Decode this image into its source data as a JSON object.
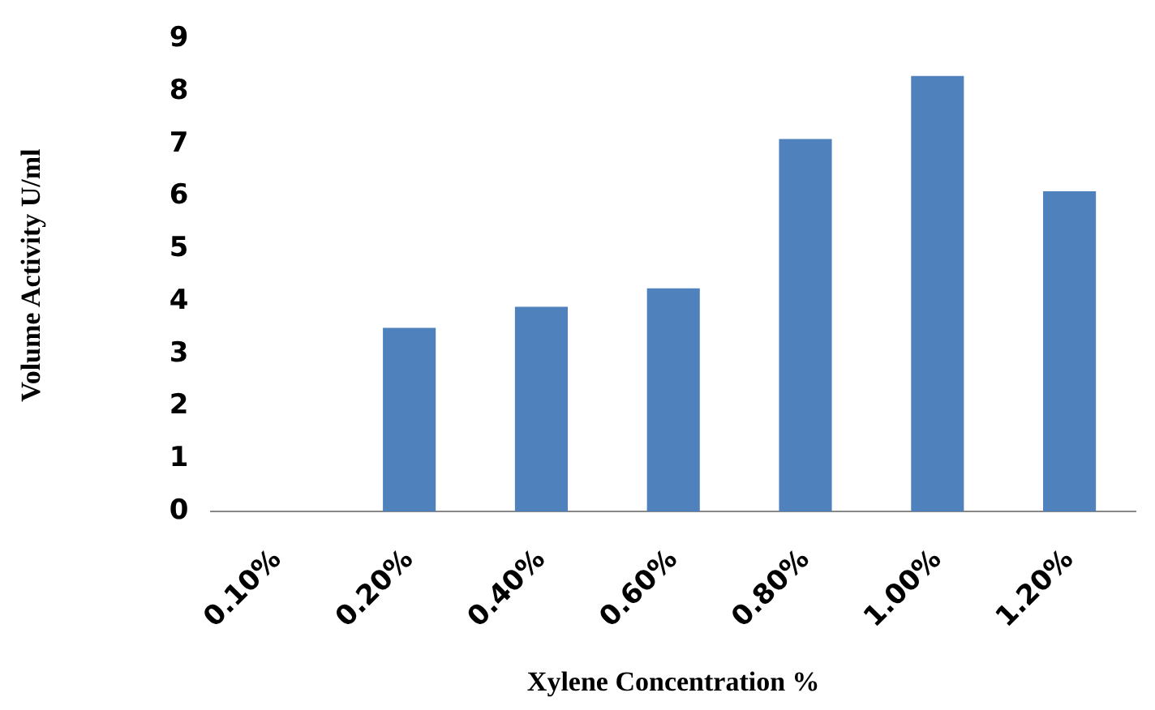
{
  "chart_data": {
    "type": "bar",
    "xlabel": "Xylene Concentration %",
    "ylabel": "Volume Activity U/ml",
    "categories": [
      "0.10%",
      "0.20%",
      "0.40%",
      "0.60%",
      "0.80%",
      "1.00%",
      "1.20%"
    ],
    "values": [
      0,
      3.5,
      3.9,
      4.25,
      7.1,
      8.3,
      6.1
    ],
    "color": "#4f81bd",
    "ylim": [
      0,
      9
    ],
    "yticks": [
      0,
      1,
      2,
      3,
      4,
      5,
      6,
      7,
      8,
      9
    ],
    "grid": false,
    "legend": false
  }
}
